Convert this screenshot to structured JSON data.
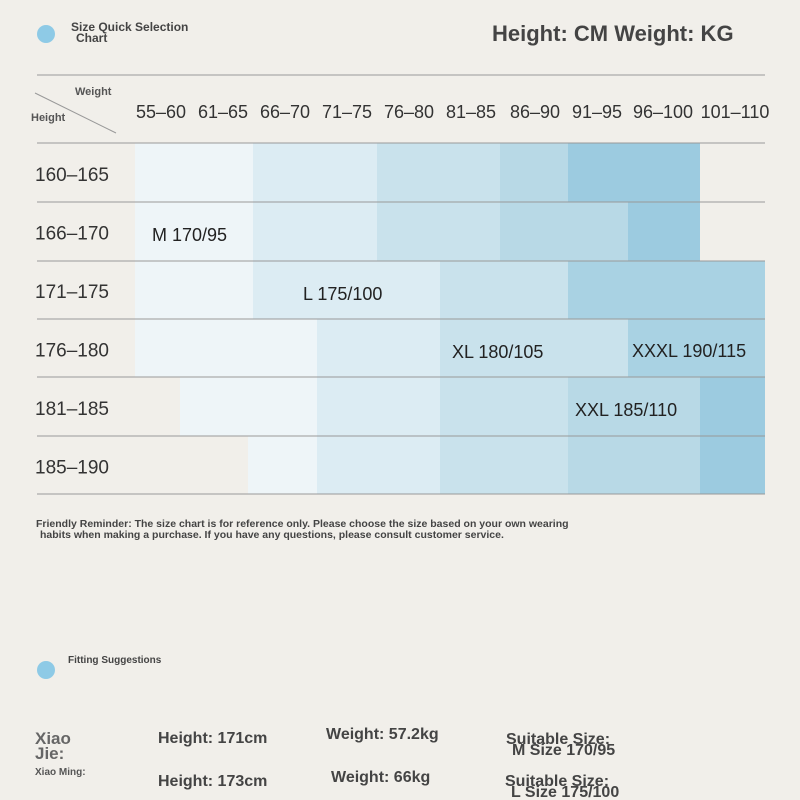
{
  "header": {
    "title_lines": [
      "Size Quick Selection",
      "Chart"
    ],
    "units": "Height: CM Weight: KG"
  },
  "table": {
    "corner_weight": "Weight",
    "corner_height": "Height",
    "columns": [
      "55–60",
      "61–65",
      "66–70",
      "71–75",
      "76–80",
      "81–85",
      "86–90",
      "91–95",
      "96–100",
      "101–110"
    ],
    "rows": [
      "160–165",
      "166–170",
      "171–175",
      "176–180",
      "181–185",
      "185–190"
    ],
    "sizes": [
      "M 170/95",
      "L 175/100",
      "XL 180/105",
      "XXXL 190/115",
      "XXL 185/110"
    ]
  },
  "reminder": [
    "Friendly Reminder: The size chart is for reference only. Please choose the size based on your own wearing",
    "habits when making a purchase. If you have any questions, please consult customer service."
  ],
  "fitting": {
    "title": "Fitting Suggestions",
    "person_lines": [
      "Xiao",
      "Jie:"
    ],
    "person2": "Xiao Ming:",
    "rows": [
      {
        "height": "Height: 171cm",
        "weight": "Weight: 57.2kg",
        "size_label": "Suitable Size:",
        "size": "M Size 170/95"
      },
      {
        "height": "Height: 173cm",
        "weight": "Weight: 66kg",
        "size_label": "Suitable Size:",
        "size": "L Size 175/100"
      }
    ]
  }
}
